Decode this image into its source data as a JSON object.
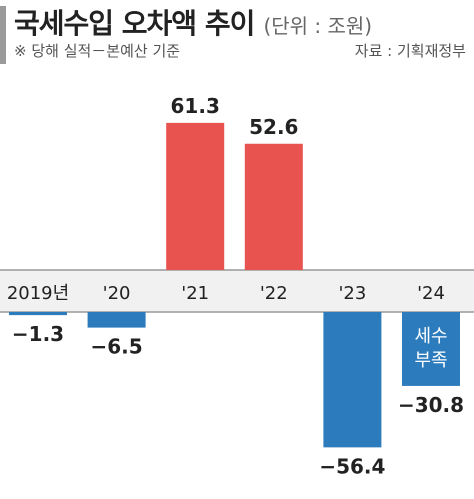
{
  "header": {
    "title": "국세수입 오차액 추이",
    "unit": "(단위 : 조원)",
    "note": "※ 당해 실적－본예산 기준",
    "source": "자료 : 기획재정부"
  },
  "chart_data": {
    "type": "bar",
    "categories": [
      "2019년",
      "'20",
      "'21",
      "'22",
      "'23",
      "'24"
    ],
    "values": [
      -1.3,
      -6.5,
      61.3,
      52.6,
      -56.4,
      -30.8
    ],
    "value_labels": [
      "−1.3",
      "−6.5",
      "61.3",
      "52.6",
      "−56.4",
      "−30.8"
    ],
    "title": "국세수입 오차액 추이",
    "ylabel": "",
    "ylim": [
      -60,
      65
    ],
    "annotation": {
      "category": "'24",
      "lines": [
        "세수",
        "부족"
      ]
    },
    "colors": {
      "positive": "#e8524f",
      "negative": "#2b7bbd",
      "axis_band": "#f1f1f1",
      "axis_line": "#999999"
    }
  }
}
